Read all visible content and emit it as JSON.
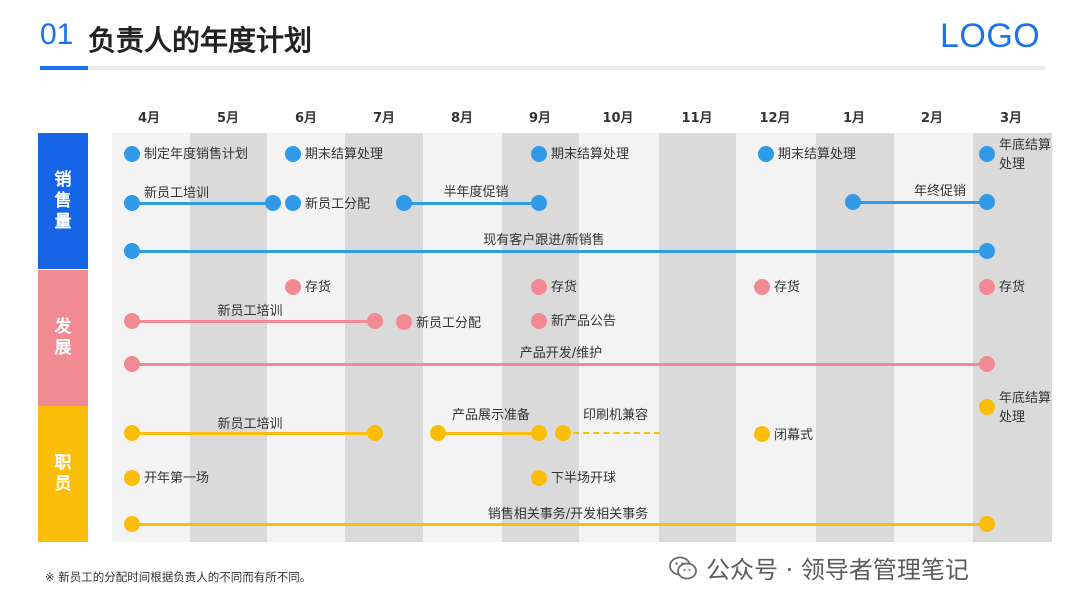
{
  "header": {
    "number": "01",
    "title": "负责人的年度计划",
    "logo": "LOGO"
  },
  "months": [
    "4月",
    "5月",
    "6月",
    "7月",
    "8月",
    "9月",
    "10月",
    "11月",
    "12月",
    "1月",
    "2月",
    "3月"
  ],
  "categories": [
    {
      "name": "销售量",
      "color": "#1565e6"
    },
    {
      "name": "发展",
      "color": "#f28a94"
    },
    {
      "name": "职员",
      "color": "#fbbd08"
    }
  ],
  "colors": {
    "blue": "#2f9be8",
    "pink": "#f28a94",
    "yellow": "#fbbd08"
  },
  "sales": {
    "r1": {
      "plan": "制定年度销售计划",
      "close1": "期末结算处理",
      "close2": "期末结算处理",
      "close3": "期末结算处理",
      "yearend": "年底结算处理"
    },
    "r2": {
      "training": "新员工培训",
      "assign": "新员工分配",
      "halfyear": "半年度促销",
      "yearpromo": "年终促销"
    },
    "r3": {
      "followup": "现有客户跟进/新销售"
    }
  },
  "dev": {
    "r1": {
      "stock1": "存货",
      "stock2": "存货",
      "stock3": "存货",
      "stock4": "存货"
    },
    "r2": {
      "training": "新员工培训",
      "assign": "新员工分配",
      "newproduct": "新产品公告"
    },
    "r3": {
      "product": "产品开发/维护"
    }
  },
  "staff": {
    "r1": {
      "training": "新员工培训",
      "exhibit": "产品展示准备",
      "printer": "印刷机兼容",
      "closing": "闭幕式",
      "yearend": "年底结算处理"
    },
    "r2": {
      "firstmatch": "开年第一场",
      "secondhalf": "下半场开球"
    },
    "r3": {
      "affairs": "销售相关事务/开发相关事务"
    }
  },
  "footer": {
    "note": "※ 新员工的分配时间根据负责人的不同而有所不同。",
    "watermark": "公众号 · 领导者管理笔记"
  }
}
